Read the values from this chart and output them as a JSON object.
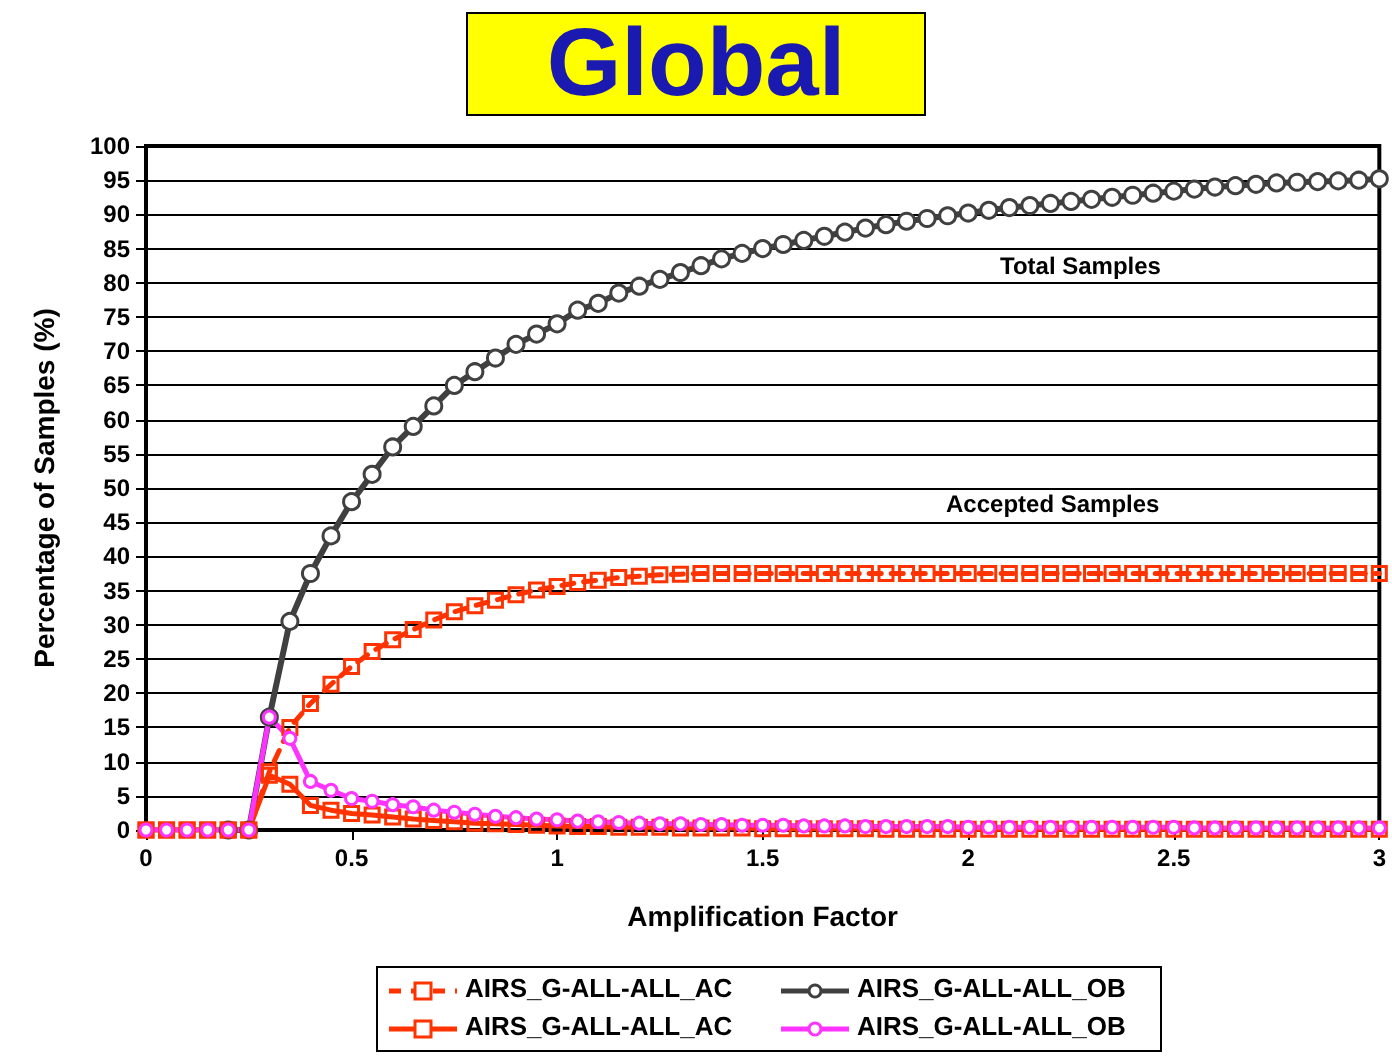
{
  "chart_data": {
    "type": "line",
    "title": "Global",
    "xlabel": "Amplification Factor",
    "ylabel": "Percentage of Samples (%)",
    "annotations": [
      "Total Samples",
      "Accepted Samples"
    ],
    "x": [
      0,
      0.05,
      0.1,
      0.15,
      0.2,
      0.25,
      0.3,
      0.35,
      0.4,
      0.45,
      0.5,
      0.55,
      0.6,
      0.65,
      0.7,
      0.75,
      0.8,
      0.85,
      0.9,
      0.95,
      1,
      1.05,
      1.1,
      1.15,
      1.2,
      1.25,
      1.3,
      1.35,
      1.4,
      1.45,
      1.5,
      1.55,
      1.6,
      1.65,
      1.7,
      1.75,
      1.8,
      1.85,
      1.9,
      1.95,
      2,
      2.05,
      2.1,
      2.15,
      2.2,
      2.25,
      2.3,
      2.35,
      2.4,
      2.45,
      2.5,
      2.55,
      2.6,
      2.65,
      2.7,
      2.75,
      2.8,
      2.85,
      2.9,
      2.95,
      3
    ],
    "series": [
      {
        "name": "AIRS_G-ALL-ALL_AC",
        "color": "#ff3300",
        "marker": "square",
        "line_style": "dashed",
        "values": [
          0,
          0,
          0,
          0,
          0,
          0,
          8.5,
          15,
          18.5,
          21.3,
          23.9,
          26.1,
          27.8,
          29.3,
          30.7,
          31.9,
          32.8,
          33.6,
          34.4,
          35.1,
          35.6,
          36.2,
          36.5,
          36.9,
          37.1,
          37.3,
          37.4,
          37.5,
          37.5,
          37.5,
          37.5,
          37.5,
          37.5,
          37.5,
          37.5,
          37.5,
          37.5,
          37.5,
          37.5,
          37.5,
          37.5,
          37.5,
          37.5,
          37.5,
          37.5,
          37.5,
          37.5,
          37.5,
          37.5,
          37.5,
          37.5,
          37.5,
          37.5,
          37.5,
          37.5,
          37.5,
          37.5,
          37.5,
          37.5,
          37.5,
          37.5
        ]
      },
      {
        "name": "AIRS_G-ALL-ALL_OB",
        "color": "#404040",
        "marker": "circle",
        "line_style": "solid",
        "values": [
          null,
          null,
          null,
          null,
          0,
          0,
          16.5,
          30.5,
          37.5,
          43,
          48,
          52,
          56,
          59,
          62,
          65,
          67,
          69,
          71,
          72.5,
          74,
          76,
          77,
          78.5,
          79.5,
          80.5,
          81.5,
          82.5,
          83.5,
          84.3,
          85,
          85.6,
          86.2,
          86.8,
          87.4,
          88,
          88.5,
          89,
          89.4,
          89.8,
          90.2,
          90.6,
          91,
          91.3,
          91.6,
          91.9,
          92.2,
          92.5,
          92.8,
          93.1,
          93.4,
          93.7,
          94,
          94.2,
          94.4,
          94.6,
          94.7,
          94.8,
          94.9,
          95,
          95.2
        ]
      },
      {
        "name": "AIRS_G-ALL-ALL_AC",
        "color": "#ff3300",
        "marker": "square",
        "line_style": "solid",
        "values": [
          0,
          0,
          0,
          0,
          0,
          0,
          8,
          6.7,
          3.6,
          2.9,
          2.4,
          2.2,
          1.9,
          1.6,
          1.4,
          1.2,
          1,
          0.9,
          0.8,
          0.7,
          0.6,
          0.5,
          0.5,
          0.4,
          0.4,
          0.4,
          0.3,
          0.3,
          0.3,
          0.3,
          0.2,
          0.2,
          0.2,
          0.2,
          0.2,
          0.2,
          0.1,
          0.1,
          0.1,
          0.1,
          0.1,
          0.1,
          0.1,
          0.1,
          0.1,
          0.1,
          0.1,
          0.1,
          0.1,
          0.1,
          0.1,
          0.1,
          0.1,
          0.1,
          0.1,
          0.1,
          0.1,
          0.1,
          0.1,
          0.1,
          0.1
        ]
      },
      {
        "name": "AIRS_G-ALL-ALL_OB",
        "color": "#ff33ff",
        "marker": "circle",
        "line_style": "solid",
        "values": [
          0,
          0,
          0,
          0,
          0,
          0,
          16.5,
          13.4,
          7.1,
          5.8,
          4.6,
          4.2,
          3.7,
          3.4,
          2.9,
          2.6,
          2.3,
          2,
          1.8,
          1.6,
          1.5,
          1.3,
          1.2,
          1.1,
          1,
          0.9,
          0.9,
          0.8,
          0.8,
          0.7,
          0.7,
          0.7,
          0.6,
          0.6,
          0.6,
          0.5,
          0.5,
          0.5,
          0.5,
          0.5,
          0.4,
          0.4,
          0.4,
          0.4,
          0.4,
          0.4,
          0.4,
          0.4,
          0.4,
          0.4,
          0.4,
          0.3,
          0.3,
          0.3,
          0.3,
          0.3,
          0.3,
          0.3,
          0.3,
          0.3,
          0.3
        ]
      }
    ],
    "xlim": [
      0,
      3
    ],
    "xticks": [
      0,
      0.5,
      1,
      1.5,
      2,
      2.5,
      3
    ],
    "ylim": [
      0,
      100
    ],
    "yticks": [
      0,
      5,
      10,
      15,
      20,
      25,
      30,
      35,
      40,
      45,
      50,
      55,
      60,
      65,
      70,
      75,
      80,
      85,
      90,
      95,
      100
    ],
    "grid": "y",
    "legend": "bottom"
  }
}
